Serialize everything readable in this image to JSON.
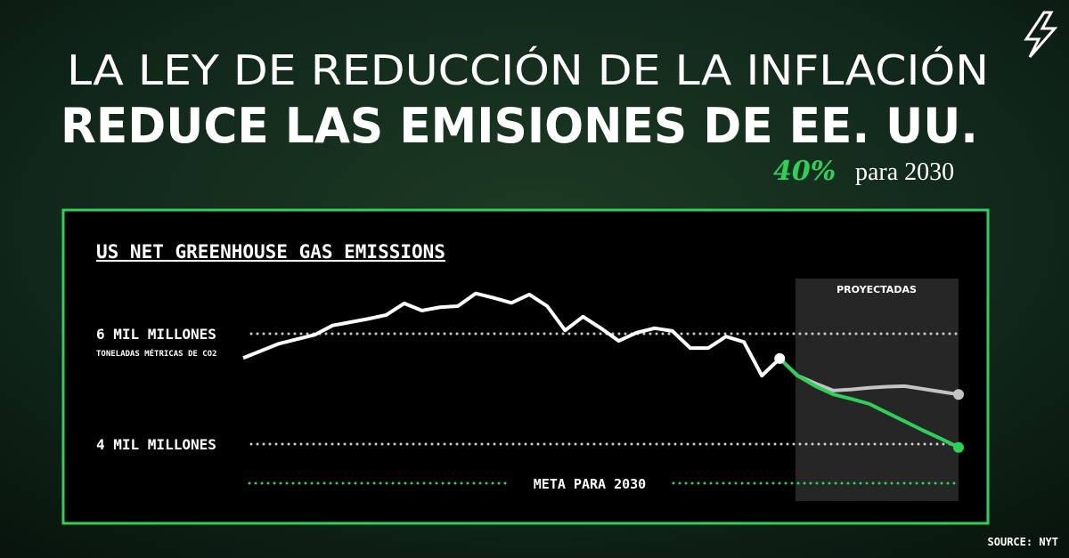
{
  "header": {
    "title_1": "LA LEY DE REDUCCIÓN DE LA INFLACIÓN",
    "title_2": "REDUCE LAS EMISIONES DE EE. UU.",
    "highlight": "40%",
    "highlight_rest": "para 2030"
  },
  "source": "SOURCE: NYT",
  "chart_data": {
    "type": "line",
    "title": "US NET GREENHOUSE GAS EMISSIONS",
    "y_label": "TONELADAS MÉTRICAS DE CO2",
    "projection_label": "PROYECTADAS",
    "categories": [
      null,
      null,
      null,
      null,
      null,
      null,
      null,
      null,
      null,
      null,
      null,
      null,
      null,
      null,
      null,
      null,
      null,
      null,
      null,
      null,
      null,
      null,
      null,
      null,
      null,
      null,
      null,
      null,
      null,
      null,
      null,
      null,
      null,
      null,
      null,
      null,
      null,
      null,
      null,
      null,
      null
    ],
    "series": [
      {
        "color": "#ffffff",
        "values": [
          5.56,
          5.69,
          5.82,
          5.9,
          5.98,
          6.15,
          6.21,
          6.27,
          6.34,
          6.55,
          6.42,
          6.48,
          6.5,
          6.73,
          6.65,
          6.56,
          6.71,
          6.5,
          6.06,
          6.31,
          6.1,
          5.87,
          6.02,
          6.1,
          6.05,
          5.74,
          5.74,
          5.95,
          5.85,
          5.24,
          5.55,
          null,
          null,
          null,
          null,
          null,
          null,
          null,
          null,
          null,
          null
        ]
      },
      {
        "color": "#c4c4c4",
        "values": [
          null,
          null,
          null,
          null,
          null,
          null,
          null,
          null,
          null,
          null,
          null,
          null,
          null,
          null,
          null,
          null,
          null,
          null,
          null,
          null,
          null,
          null,
          null,
          null,
          null,
          null,
          null,
          null,
          null,
          null,
          5.55,
          5.24,
          5.1,
          4.97,
          4.99,
          5.02,
          5.04,
          5.05,
          5.0,
          4.95,
          4.9
        ]
      },
      {
        "color": "#2fd05a",
        "values": [
          null,
          null,
          null,
          null,
          null,
          null,
          null,
          null,
          null,
          null,
          null,
          null,
          null,
          null,
          null,
          null,
          null,
          null,
          null,
          null,
          null,
          null,
          null,
          null,
          null,
          null,
          null,
          null,
          null,
          null,
          5.55,
          5.24,
          5.05,
          4.9,
          4.82,
          4.73,
          4.57,
          4.41,
          4.25,
          4.1,
          3.94
        ]
      }
    ],
    "ylim": [
      3,
      7
    ],
    "yticks": [
      {
        "value": 6,
        "label": "6 MIL MILLONES"
      },
      {
        "value": 4,
        "label": "4 MIL MILLONES"
      }
    ],
    "goal": {
      "value": 3.29,
      "label": "META PARA 2030",
      "color": "#2fd05a"
    },
    "grid": true
  }
}
